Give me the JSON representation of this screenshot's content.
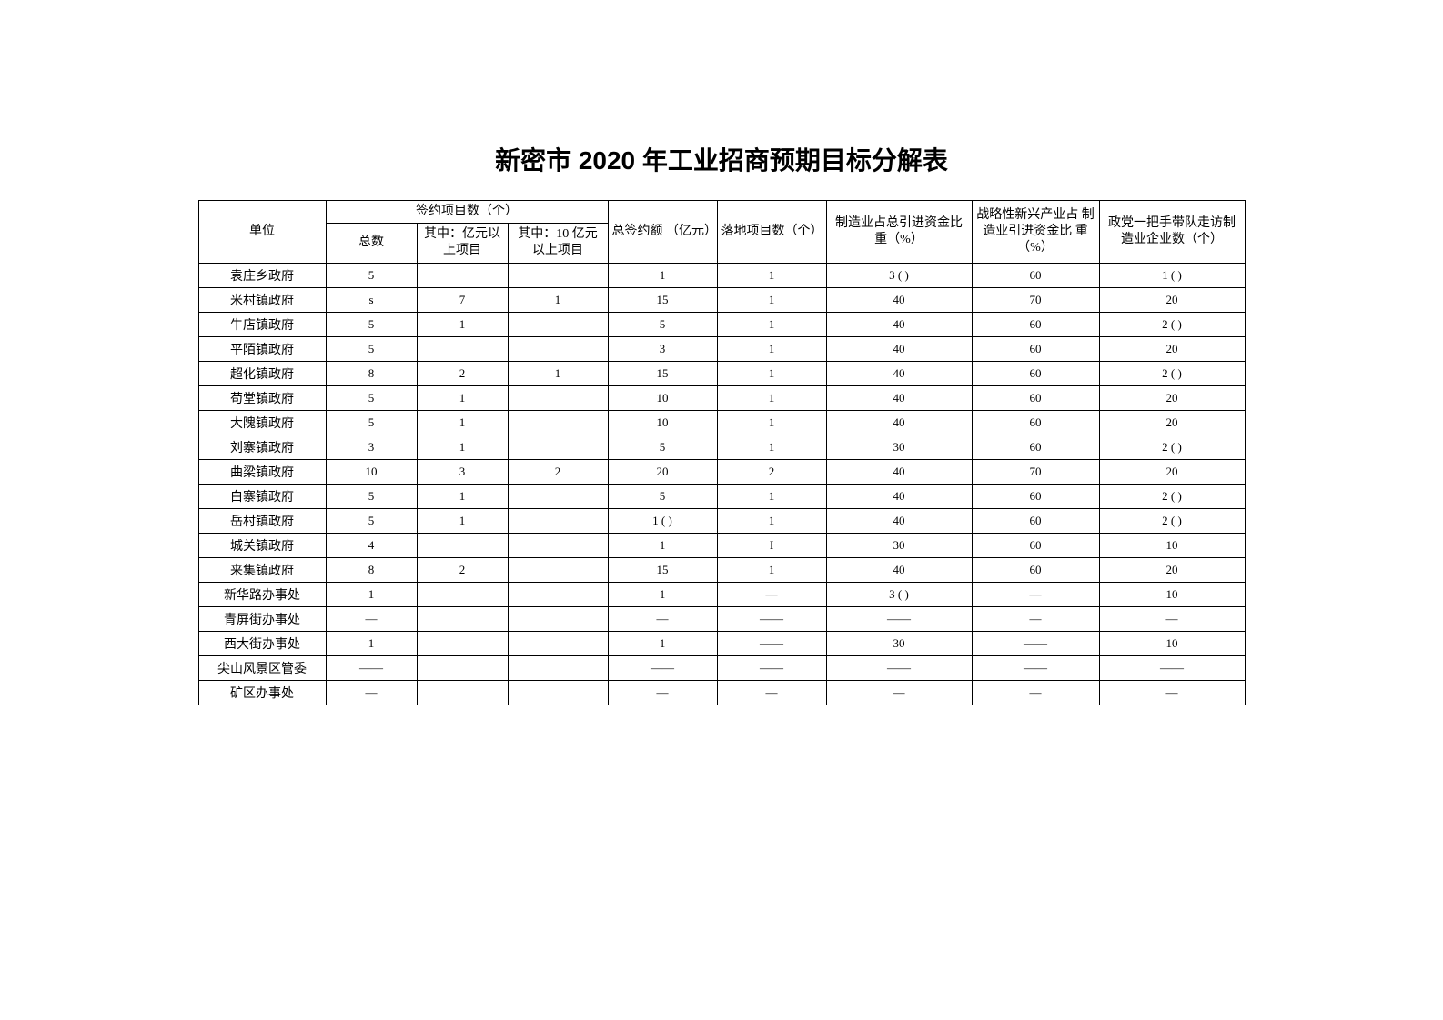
{
  "title": "新密市 2020 年工业招商预期目标分解表",
  "headers": {
    "unit": "单位",
    "signed_group": "签约项目数（个）",
    "signed_total": "总数",
    "signed_yi": "其中：亿元以上项目",
    "signed_10yi": "其中：10 亿元以上项目",
    "amount": "总签约额 （亿元）",
    "landed": "落地项目数（个）",
    "mfg_ratio": "制造业占总引进资金比重（%）",
    "emerging_ratio": "战略性新兴产业占 制造业引进资金比 重（%）",
    "visit": "政党一把手带队走访制造业企业数（个）"
  },
  "rows": [
    {
      "unit": "袁庄乡政府",
      "total": "5",
      "yi": "",
      "yi10": "",
      "amt": "1",
      "land": "1",
      "mfg": "3 ( )",
      "emrg": "60",
      "visit": "1 ( )"
    },
    {
      "unit": "米村镇政府",
      "total": "s",
      "yi": "7",
      "yi10": "1",
      "amt": "15",
      "land": "1",
      "mfg": "40",
      "emrg": "70",
      "visit": "20"
    },
    {
      "unit": "牛店镇政府",
      "total": "5",
      "yi": "1",
      "yi10": "",
      "amt": "5",
      "land": "1",
      "mfg": "40",
      "emrg": "60",
      "visit": "2 ( )"
    },
    {
      "unit": "平陌镇政府",
      "total": "5",
      "yi": "",
      "yi10": "",
      "amt": "3",
      "land": "1",
      "mfg": "40",
      "emrg": "60",
      "visit": "20"
    },
    {
      "unit": "超化镇政府",
      "total": "8",
      "yi": "2",
      "yi10": "1",
      "amt": "15",
      "land": "1",
      "mfg": "40",
      "emrg": "60",
      "visit": "2 ( )"
    },
    {
      "unit": "苟堂镇政府",
      "total": "5",
      "yi": "1",
      "yi10": "",
      "amt": "10",
      "land": "1",
      "mfg": "40",
      "emrg": "60",
      "visit": "20"
    },
    {
      "unit": "大隗镇政府",
      "total": "5",
      "yi": "1",
      "yi10": "",
      "amt": "10",
      "land": "1",
      "mfg": "40",
      "emrg": "60",
      "visit": "20"
    },
    {
      "unit": "刘寨镇政府",
      "total": "3",
      "yi": "1",
      "yi10": "",
      "amt": "5",
      "land": "1",
      "mfg": "30",
      "emrg": "60",
      "visit": "2 ( )"
    },
    {
      "unit": "曲梁镇政府",
      "total": "10",
      "yi": "3",
      "yi10": "2",
      "amt": "20",
      "land": "2",
      "mfg": "40",
      "emrg": "70",
      "visit": "20"
    },
    {
      "unit": "白寨镇政府",
      "total": "5",
      "yi": "1",
      "yi10": "",
      "amt": "5",
      "land": "1",
      "mfg": "40",
      "emrg": "60",
      "visit": "2 ( )"
    },
    {
      "unit": "岳村镇政府",
      "total": "5",
      "yi": "1",
      "yi10": "",
      "amt": "1 ( )",
      "land": "1",
      "mfg": "40",
      "emrg": "60",
      "visit": "2 ( )"
    },
    {
      "unit": "城关镇政府",
      "total": "4",
      "yi": "",
      "yi10": "",
      "amt": "1",
      "land": "I",
      "mfg": "30",
      "emrg": "60",
      "visit": "10"
    },
    {
      "unit": "来集镇政府",
      "total": "8",
      "yi": "2",
      "yi10": "",
      "amt": "15",
      "land": "1",
      "mfg": "40",
      "emrg": "60",
      "visit": "20"
    },
    {
      "unit": "新华路办事处",
      "total": "1",
      "yi": "",
      "yi10": "",
      "amt": "1",
      "land": "—",
      "mfg": "3 ( )",
      "emrg": "—",
      "visit": "10"
    },
    {
      "unit": "青屏街办事处",
      "total": "—",
      "yi": "",
      "yi10": "",
      "amt": "—",
      "land": "——",
      "mfg": "——",
      "emrg": "—",
      "visit": "—"
    },
    {
      "unit": "西大街办事处",
      "total": "1",
      "yi": "",
      "yi10": "",
      "amt": "1",
      "land": "——",
      "mfg": "30",
      "emrg": "——",
      "visit": "10"
    },
    {
      "unit": "尖山风景区管委",
      "total": "——",
      "yi": "",
      "yi10": "",
      "amt": "——",
      "land": "——",
      "mfg": "——",
      "emrg": "——",
      "visit": "——"
    },
    {
      "unit": "矿区办事处",
      "total": "—",
      "yi": "",
      "yi10": "",
      "amt": "—",
      "land": "—",
      "mfg": "—",
      "emrg": "—",
      "visit": "—"
    }
  ]
}
